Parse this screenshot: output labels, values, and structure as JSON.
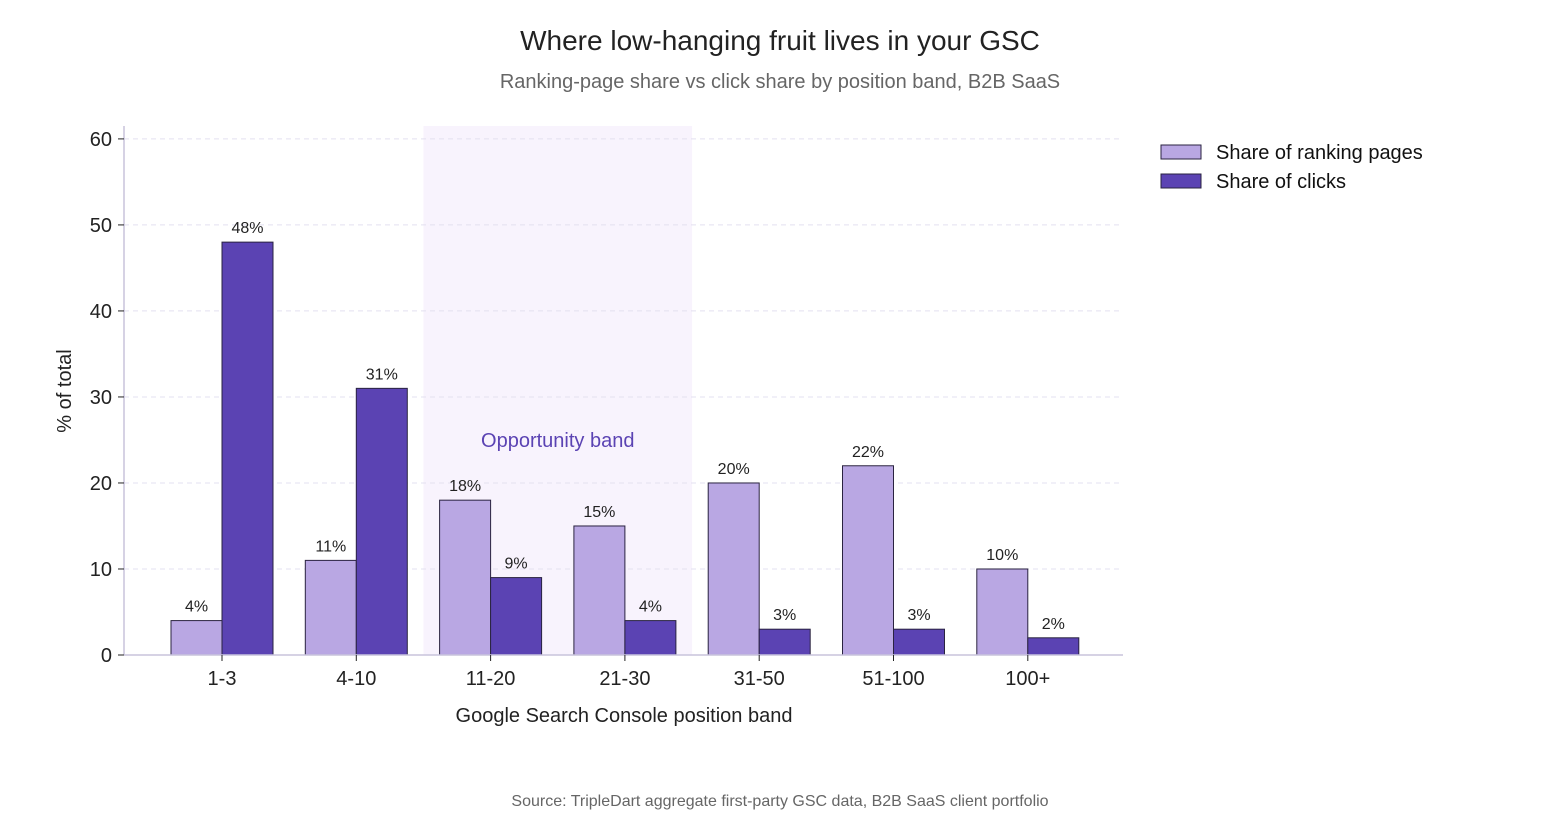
{
  "chart_data": {
    "type": "bar",
    "title": "Where low-hanging fruit lives in your GSC",
    "subtitle": "Ranking-page share vs click share by position band, B2B SaaS",
    "xlabel": "Google Search Console position band",
    "ylabel": "% of total",
    "ylim": [
      0,
      61.5
    ],
    "yticks": [
      0,
      10,
      20,
      30,
      40,
      50,
      60
    ],
    "ytick_labels": [
      "0",
      "10",
      "20",
      "30",
      "40",
      "50",
      "60"
    ],
    "categories": [
      "1-3",
      "4-10",
      "11-20",
      "21-30",
      "31-50",
      "51-100",
      "100+"
    ],
    "series": [
      {
        "name": "Share of ranking pages",
        "values": [
          4,
          11,
          18,
          15,
          20,
          22,
          10
        ],
        "labels": [
          "4%",
          "11%",
          "18%",
          "15%",
          "20%",
          "22%",
          "10%"
        ],
        "color": "#b9a7e3"
      },
      {
        "name": "Share of clicks",
        "values": [
          48,
          31,
          9,
          4,
          3,
          3,
          2
        ],
        "labels": [
          "48%",
          "31%",
          "9%",
          "4%",
          "3%",
          "3%",
          "2%"
        ],
        "color": "#5b43b3"
      }
    ],
    "grid": "horizontal dashed",
    "legend": "right",
    "highlight_band": {
      "label": "Opportunity band",
      "categories": [
        "11-20",
        "21-30"
      ],
      "color": "#f8f3fd",
      "label_color": "#5b43b3"
    },
    "source": "Source: TripleDart aggregate first-party GSC data, B2B SaaS client portfolio"
  },
  "colors": {
    "text": "#222222",
    "muted": "#666666",
    "grid": "#e3e0f0",
    "axis": "#c8c4dc",
    "bar_edge": "#2a2340"
  }
}
